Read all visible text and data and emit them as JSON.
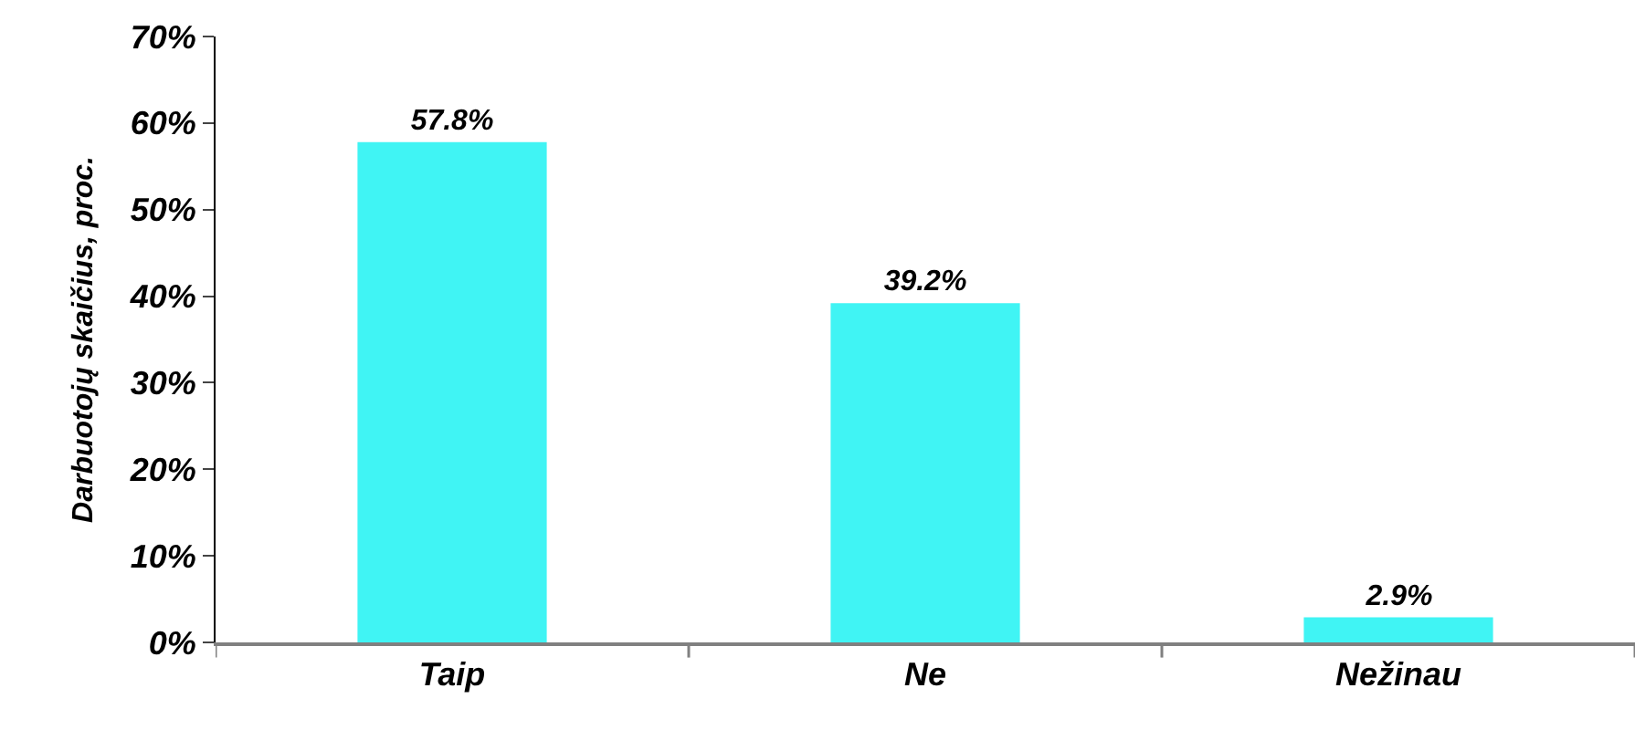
{
  "chart_data": {
    "type": "bar",
    "ylabel": "Darbuotojų skaičius, proc.",
    "categories": [
      "Taip",
      "Ne",
      "Nežinau"
    ],
    "values": [
      57.8,
      39.2,
      2.9
    ],
    "value_labels": [
      "57.8%",
      "39.2%",
      "2.9%"
    ],
    "color": "#40f4f4",
    "ylim": [
      0,
      70
    ],
    "yticks": [
      {
        "value": 0,
        "label": "0%"
      },
      {
        "value": 10,
        "label": "10%"
      },
      {
        "value": 20,
        "label": "20%"
      },
      {
        "value": 30,
        "label": "30%"
      },
      {
        "value": 40,
        "label": "40%"
      },
      {
        "value": 50,
        "label": "50%"
      },
      {
        "value": 60,
        "label": "60%"
      },
      {
        "value": 70,
        "label": "70%"
      }
    ],
    "tick_labels": [
      "x",
      "y"
    ]
  }
}
